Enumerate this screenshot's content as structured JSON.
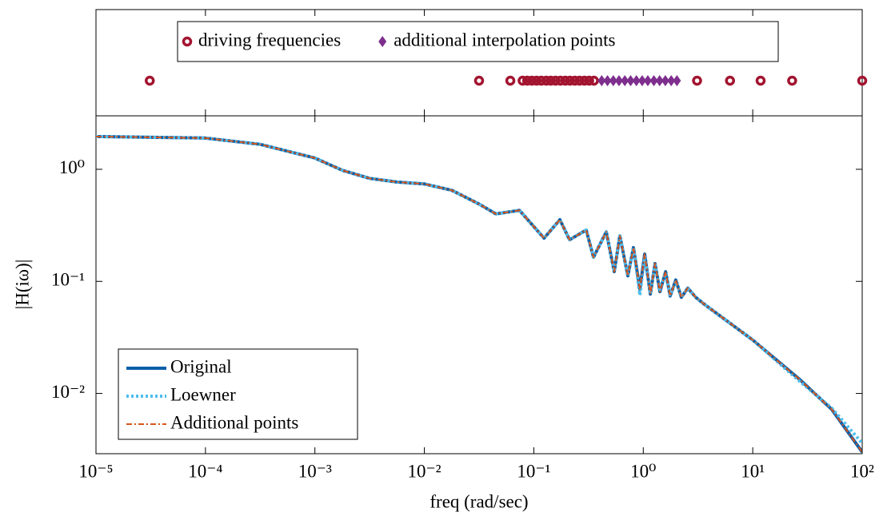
{
  "chart_data": [
    {
      "type": "scatter",
      "log_x": true,
      "xlim": [
        1e-05,
        100
      ],
      "legend": "top",
      "series": [
        {
          "name": "driving frequencies",
          "color": "#a2142f",
          "marker": "circle",
          "x": [
            3.1e-05,
            0.0316,
            0.061,
            0.079,
            0.087,
            0.096,
            0.106,
            0.117,
            0.13,
            0.143,
            0.158,
            0.175,
            0.194,
            0.214,
            0.237,
            0.262,
            0.29,
            0.32,
            0.354,
            3.1,
            6.2,
            11.8,
            22.9,
            100
          ]
        },
        {
          "name": "additional interpolation points",
          "color": "#7e2f8e",
          "marker": "diamond",
          "x": [
            0.417,
            0.471,
            0.532,
            0.6,
            0.678,
            0.766,
            0.865,
            0.977,
            1.1,
            1.25,
            1.41,
            1.59,
            1.8,
            2.03
          ]
        }
      ]
    },
    {
      "type": "line",
      "log_x": true,
      "log_y": true,
      "xlabel": "freq (rad/sec)",
      "ylabel": "|H(iω)|",
      "xlim": [
        1e-05,
        100
      ],
      "ylim": [
        0.0029,
        3
      ],
      "xticks": [
        {
          "value": 1e-05,
          "label": "10⁻⁵"
        },
        {
          "value": 0.0001,
          "label": "10⁻⁴"
        },
        {
          "value": 0.001,
          "label": "10⁻³"
        },
        {
          "value": 0.01,
          "label": "10⁻²"
        },
        {
          "value": 0.1,
          "label": "10⁻¹"
        },
        {
          "value": 1,
          "label": "10⁰"
        },
        {
          "value": 10,
          "label": "10¹"
        },
        {
          "value": 100,
          "label": "10²"
        }
      ],
      "yticks": [
        {
          "value": 1,
          "label": "10⁰"
        },
        {
          "value": 0.1,
          "label": "10⁻¹"
        },
        {
          "value": 0.01,
          "label": "10⁻²"
        }
      ],
      "legend": "lower left",
      "x": [
        1e-05,
        3.16e-05,
        0.0001,
        0.000316,
        0.001,
        0.00178,
        0.00316,
        0.00562,
        0.01,
        0.0178,
        0.0316,
        0.045,
        0.074,
        0.124,
        0.173,
        0.212,
        0.301,
        0.351,
        0.459,
        0.543,
        0.611,
        0.723,
        0.813,
        0.931,
        1.03,
        1.16,
        1.28,
        1.42,
        1.6,
        1.76,
        1.98,
        2.23,
        2.55,
        3.02,
        3.57,
        10,
        26.9,
        52.7,
        100
      ],
      "series": [
        {
          "name": "Original",
          "color": "#0b5fa8",
          "linestyle": "solid",
          "values": [
            1.96,
            1.93,
            1.9,
            1.67,
            1.26,
            0.98,
            0.83,
            0.77,
            0.74,
            0.65,
            0.49,
            0.4,
            0.43,
            0.243,
            0.355,
            0.235,
            0.287,
            0.164,
            0.277,
            0.122,
            0.255,
            0.112,
            0.2,
            0.085,
            0.175,
            0.077,
            0.144,
            0.081,
            0.122,
            0.074,
            0.103,
            0.072,
            0.087,
            0.072,
            0.063,
            0.03,
            0.0133,
            0.0072,
            0.003
          ]
        },
        {
          "name": "Loewner",
          "color": "#4dbeee",
          "linestyle": "dotted",
          "values": [
            1.96,
            1.93,
            1.9,
            1.67,
            1.26,
            0.98,
            0.83,
            0.77,
            0.74,
            0.65,
            0.49,
            0.4,
            0.43,
            0.243,
            0.355,
            0.235,
            0.287,
            0.164,
            0.277,
            0.122,
            0.255,
            0.112,
            0.2,
            0.075,
            0.165,
            0.08,
            0.14,
            0.085,
            0.118,
            0.076,
            0.1,
            0.073,
            0.086,
            0.072,
            0.063,
            0.03,
            0.0128,
            0.0074,
            0.0036
          ]
        },
        {
          "name": "Additional points",
          "color": "#d95319",
          "linestyle": "dashdot",
          "values": [
            1.96,
            1.93,
            1.9,
            1.67,
            1.26,
            0.98,
            0.83,
            0.77,
            0.74,
            0.65,
            0.49,
            0.4,
            0.43,
            0.243,
            0.355,
            0.235,
            0.287,
            0.164,
            0.277,
            0.122,
            0.255,
            0.112,
            0.2,
            0.085,
            0.175,
            0.077,
            0.144,
            0.081,
            0.122,
            0.074,
            0.103,
            0.072,
            0.087,
            0.072,
            0.063,
            0.03,
            0.0133,
            0.0072,
            0.003
          ]
        }
      ]
    }
  ]
}
